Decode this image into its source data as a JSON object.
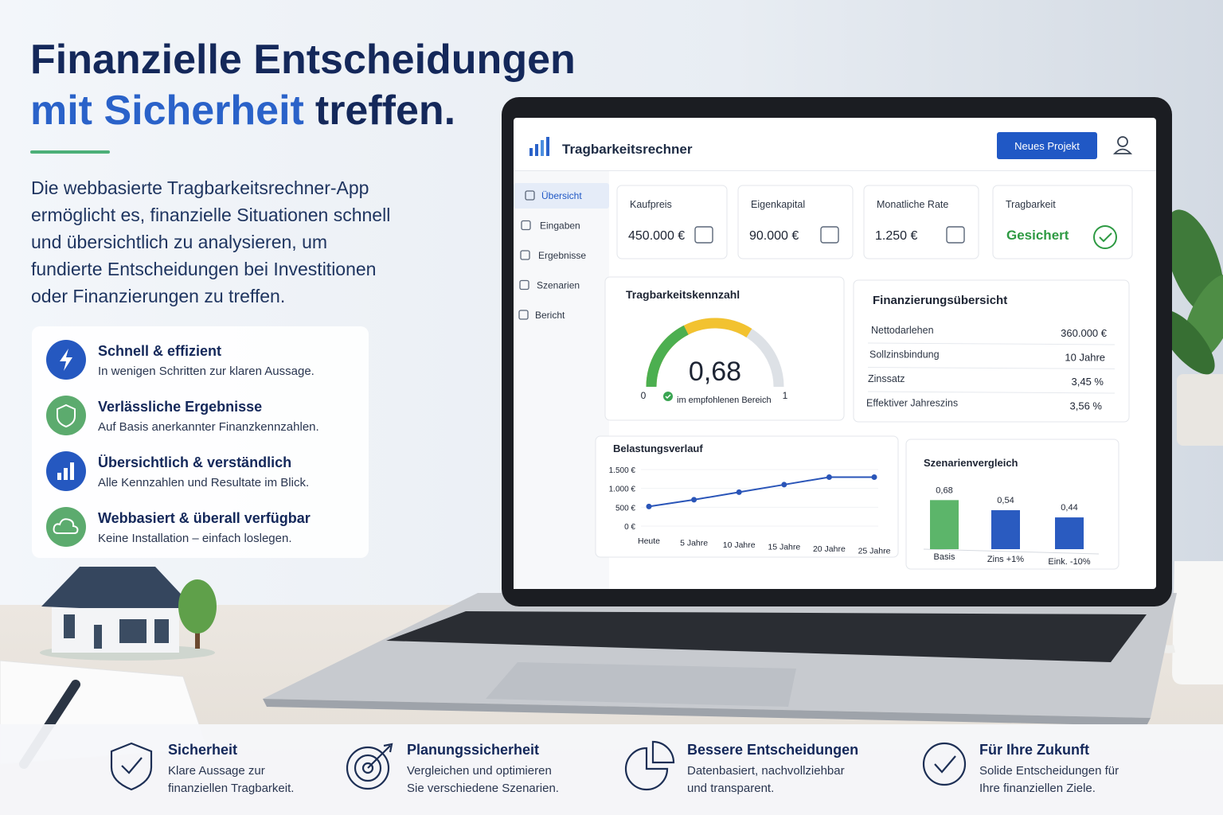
{
  "header": {
    "title_line1": "Finanzielle Entscheidungen",
    "title_highlight": "mit Sicherheit",
    "title_rest": "treffen.",
    "description": [
      "Die webbasierte Tragbarkeitsrechner-App",
      "ermöglicht es, finanzielle Situationen schnell",
      "und übersichtlich zu analysieren, um",
      "fundierte Entscheidungen bei Investitionen",
      "oder Finanzierungen zu treffen."
    ]
  },
  "features": [
    {
      "title": "Schnell & effizient",
      "text": "In wenigen Schritten zur klaren Aussage."
    },
    {
      "title": "Verlässliche Ergebnisse",
      "text": "Auf Basis anerkannter Finanzkennzahlen."
    },
    {
      "title": "Übersichtlich & verständlich",
      "text": "Alle Kennzahlen und Resultate im Blick."
    },
    {
      "title": "Webbasiert & überall verfügbar",
      "text": "Keine Installation – einfach loslegen."
    }
  ],
  "app": {
    "name": "Tragbarkeitsrechner",
    "button": "Neues Projekt",
    "nav": [
      "Übersicht",
      "Eingaben",
      "Ergebnisse",
      "Szenarien",
      "Bericht"
    ],
    "kpis": [
      {
        "label": "Kaufpreis",
        "value": "450.000 €"
      },
      {
        "label": "Eigenkapital",
        "value": "90.000 €"
      },
      {
        "label": "Monatliche Rate",
        "value": "1.250 €"
      },
      {
        "label": "Tragbarkeit",
        "value": "Gesichert"
      }
    ],
    "summary": {
      "title": "Finanzierungsübersicht",
      "rows": [
        [
          "Nettodarlehen",
          "360.000 €"
        ],
        [
          "Sollzinsbindung",
          "10 Jahre"
        ],
        [
          "Zinssatz",
          "3,45 %"
        ],
        [
          "Effektiver Jahreszins",
          "3,56 %"
        ]
      ]
    }
  },
  "chart_data": [
    {
      "type": "gauge",
      "title": "Tragbarkeitskennzahl",
      "values": [
        0.68
      ],
      "value_labels": [
        "0,68"
      ],
      "ylim": [
        0,
        1
      ],
      "yticks": [
        0,
        1
      ],
      "note": "im empfohlenen Bereich",
      "color": "#f2c230",
      "track_color": "#dde1e6",
      "bands": [
        {
          "to": 0.35,
          "color": "#4caf50"
        }
      ]
    },
    {
      "type": "line",
      "title": "Belastungsverlauf",
      "categories": [
        "Heute",
        "5 Jahre",
        "10 Jahre",
        "15 Jahre",
        "20 Jahre",
        "25 Jahre"
      ],
      "values": [
        520,
        700,
        900,
        1100,
        1300,
        1300
      ],
      "color": "#2a55b8",
      "ylim": [
        0,
        1500
      ],
      "yticks": [
        {
          "value": 0,
          "label": "0 €"
        },
        {
          "value": 500,
          "label": "500 €"
        },
        {
          "value": 1000,
          "label": "1.000 €"
        },
        {
          "value": 1500,
          "label": "1.500 €"
        }
      ]
    },
    {
      "type": "bar",
      "title": "Szenarienvergleich",
      "categories": [
        "Basis",
        "Zins +1%",
        "Eink. -10%"
      ],
      "values": [
        0.68,
        0.54,
        0.44
      ],
      "value_labels": [
        "0,68",
        "0,54",
        "0,44"
      ],
      "colors": [
        "#5cb56a",
        "#2a5bc0",
        "#2a5bc0"
      ],
      "ylim": [
        0,
        0.75
      ]
    }
  ],
  "footer": [
    {
      "title": "Sicherheit",
      "lines": [
        "Klare Aussage zur",
        "finanziellen Tragbarkeit."
      ]
    },
    {
      "title": "Planungssicherheit",
      "lines": [
        "Vergleichen und optimieren",
        "Sie verschiedene Szenarien."
      ]
    },
    {
      "title": "Bessere Entscheidungen",
      "lines": [
        "Datenbasiert, nachvollziehbar",
        "und transparent."
      ]
    },
    {
      "title": "Für Ihre Zukunft",
      "lines": [
        "Solide Entscheidungen für",
        "Ihre finanziellen Ziele."
      ]
    }
  ]
}
